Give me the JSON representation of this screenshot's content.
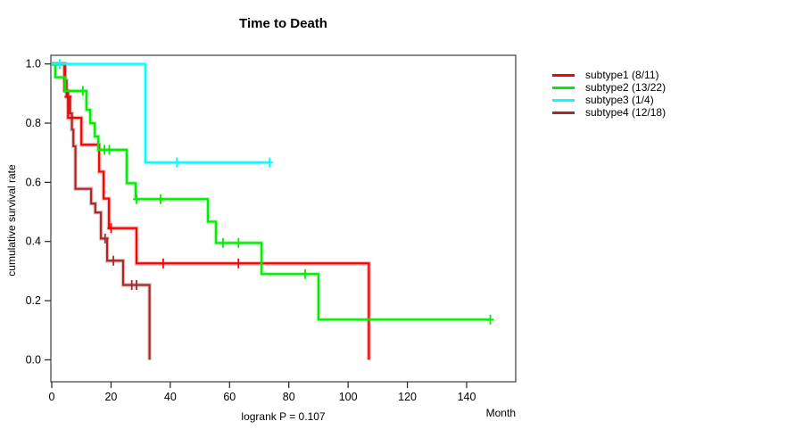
{
  "title": "Time to Death",
  "annotation": "logrank P = 0.107",
  "axes": {
    "x_label": "Month",
    "y_label": "cumulative survival rate"
  },
  "chart_data": {
    "type": "line",
    "subtype": "kaplan-meier-step-curves",
    "title": "Time to Death",
    "xlabel": "Month",
    "ylabel": "cumulative survival rate",
    "xlim": [
      0,
      147
    ],
    "ylim": [
      0,
      1
    ],
    "xticks": [
      0,
      20,
      40,
      60,
      80,
      100,
      120,
      140
    ],
    "yticks": [
      "0.0",
      "0.2",
      "0.4",
      "0.6",
      "0.8",
      "1.0"
    ],
    "grid": false,
    "legend_position": "right",
    "annotation": "logrank P = 0.107",
    "series": [
      {
        "name": "subtype1 (8/11)",
        "color": "#ff0000",
        "start": 1.0,
        "steps": [
          [
            4.3,
            0.909
          ],
          [
            5.5,
            0.818
          ],
          [
            10,
            0.727
          ],
          [
            16,
            0.636
          ],
          [
            17.5,
            0.545
          ],
          [
            19.3,
            0.445
          ],
          [
            28.6,
            0.326
          ],
          [
            107,
            0.0
          ]
        ],
        "end": 107,
        "censors": [
          [
            20,
            0.445
          ],
          [
            37.6,
            0.326
          ],
          [
            63,
            0.326
          ]
        ]
      },
      {
        "name": "subtype2 (13/22)",
        "color": "#00ee00",
        "start": 1.0,
        "steps": [
          [
            1.2,
            0.955
          ],
          [
            4.5,
            0.909
          ],
          [
            11.7,
            0.845
          ],
          [
            13,
            0.8
          ],
          [
            14.5,
            0.755
          ],
          [
            15.7,
            0.71
          ],
          [
            25.3,
            0.597
          ],
          [
            28.3,
            0.543
          ],
          [
            52.7,
            0.467
          ],
          [
            55.4,
            0.395
          ],
          [
            70.8,
            0.29
          ],
          [
            90,
            0.136
          ]
        ],
        "end": 148,
        "censors": [
          [
            10.5,
            0.909
          ],
          [
            17.8,
            0.71
          ],
          [
            19.4,
            0.71
          ],
          [
            28.6,
            0.543
          ],
          [
            36.7,
            0.543
          ],
          [
            57.8,
            0.395
          ],
          [
            63,
            0.395
          ],
          [
            85.5,
            0.29
          ],
          [
            148,
            0.136
          ]
        ]
      },
      {
        "name": "subtype3 (1/4)",
        "color": "#00ffff",
        "start": 1.0,
        "steps": [
          [
            31.6,
            0.667
          ]
        ],
        "end": 73.5,
        "censors": [
          [
            2.7,
            1.0
          ],
          [
            42.2,
            0.667
          ],
          [
            73.5,
            0.667
          ]
        ]
      },
      {
        "name": "subtype4 (12/18)",
        "color": "#a52a2a",
        "start": 1.0,
        "steps": [
          [
            4.5,
            0.944
          ],
          [
            5,
            0.889
          ],
          [
            6.2,
            0.833
          ],
          [
            6.8,
            0.778
          ],
          [
            7.3,
            0.722
          ],
          [
            8,
            0.578
          ],
          [
            13.3,
            0.528
          ],
          [
            14.7,
            0.498
          ],
          [
            16.6,
            0.41
          ],
          [
            18.7,
            0.335
          ],
          [
            24.1,
            0.253
          ],
          [
            33,
            0.0
          ]
        ],
        "end": 33,
        "censors": [
          [
            5.5,
            0.889
          ],
          [
            18,
            0.41
          ],
          [
            20.8,
            0.335
          ],
          [
            27,
            0.253
          ],
          [
            28.6,
            0.253
          ]
        ]
      }
    ]
  }
}
